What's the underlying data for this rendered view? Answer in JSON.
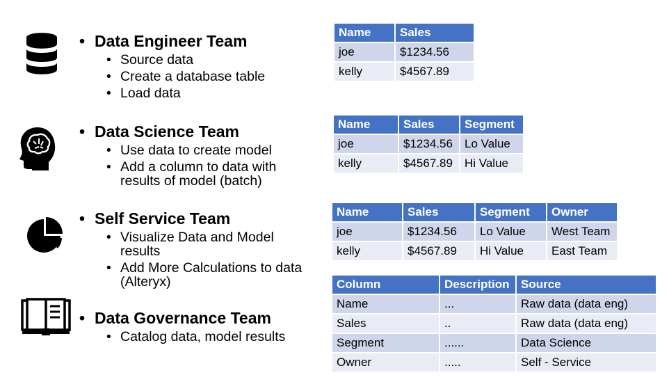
{
  "sections": [
    {
      "title": "Data Engineer Team",
      "icon": "database-icon",
      "items": [
        "Source data",
        "Create a database table",
        "Load data"
      ]
    },
    {
      "title": "Data Science Team",
      "icon": "brain-head-icon",
      "items": [
        "Use data to create model",
        "Add a column to data with results of model (batch)"
      ]
    },
    {
      "title": "Self Service Team",
      "icon": "pie-chart-icon",
      "items": [
        "Visualize Data and Model results",
        "Add More Calculations to data (Alteryx)"
      ]
    },
    {
      "title": "Data Governance Team",
      "icon": "book-icon",
      "items": [
        "Catalog data, model results"
      ]
    }
  ],
  "tables": {
    "t1": {
      "headers": [
        "Name",
        "Sales"
      ],
      "rows": [
        [
          "joe",
          "$1234.56"
        ],
        [
          "kelly",
          "$4567.89"
        ]
      ]
    },
    "t2": {
      "headers": [
        "Name",
        "Sales",
        "Segment"
      ],
      "rows": [
        [
          "joe",
          "$1234.56",
          "Lo Value"
        ],
        [
          "kelly",
          "$4567.89",
          "Hi Value"
        ]
      ]
    },
    "t3": {
      "headers": [
        "Name",
        "Sales",
        "Segment",
        "Owner"
      ],
      "rows": [
        [
          "joe",
          "$1234.56",
          "Lo Value",
          "West Team"
        ],
        [
          "kelly",
          "$4567.89",
          "Hi Value",
          "East Team"
        ]
      ]
    },
    "t4": {
      "headers": [
        "Column",
        "Description",
        "Source"
      ],
      "rows": [
        [
          "Name",
          "...",
          "Raw data (data eng)"
        ],
        [
          "Sales",
          "..",
          "Raw data (data eng)"
        ],
        [
          "Segment",
          "......",
          "Data Science"
        ],
        [
          "Owner",
          ".....",
          "Self - Service"
        ]
      ]
    }
  },
  "colors": {
    "header_bg": "#4472C4",
    "row_light": "#E9EBF5",
    "row_dark": "#CFD5EA"
  }
}
